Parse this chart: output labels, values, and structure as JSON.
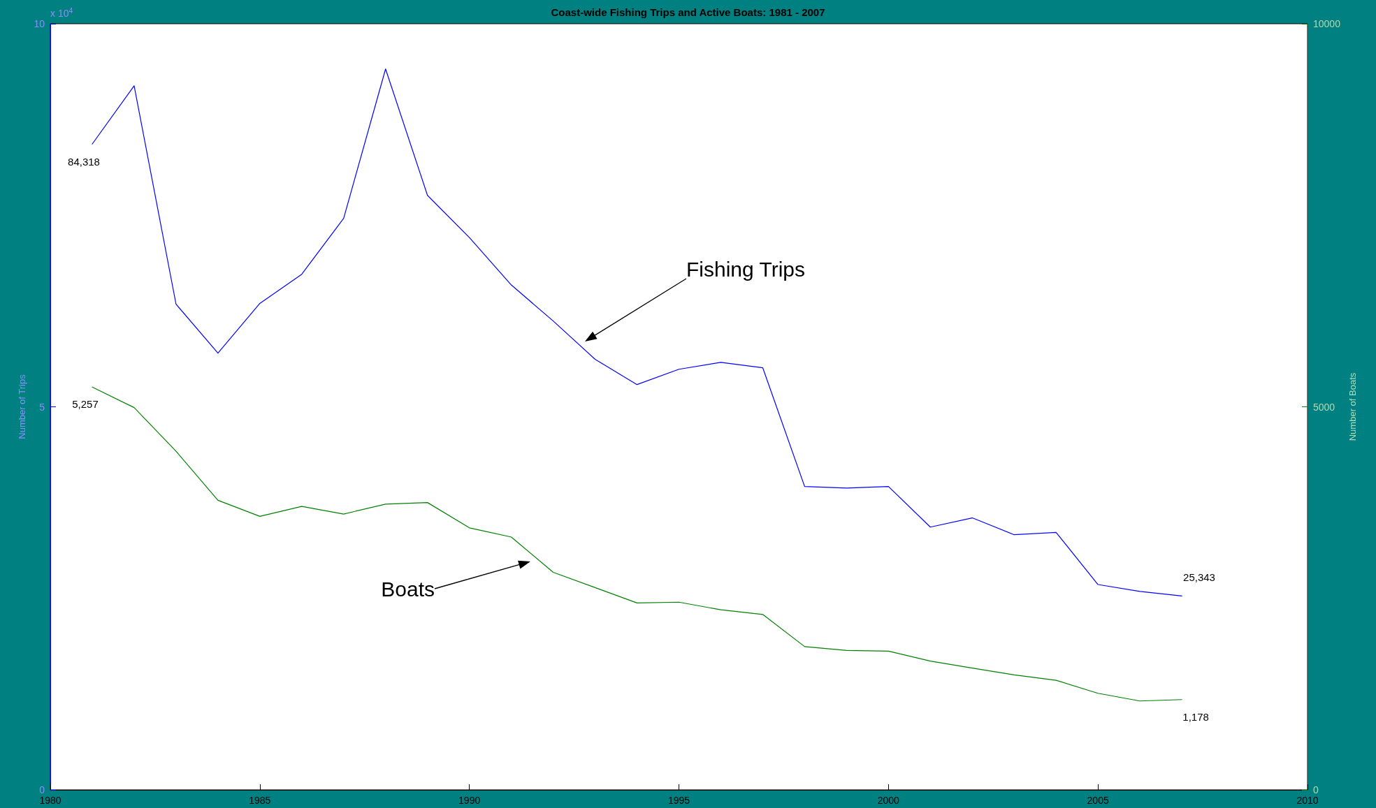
{
  "chart_data": {
    "type": "line",
    "title": "Coast-wide Fishing Trips and Active Boats: 1981 - 2007",
    "ylabel": "Number of Trips",
    "y2label": "Number of Boats",
    "x": [
      1981,
      1982,
      1983,
      1984,
      1985,
      1986,
      1987,
      1988,
      1989,
      1990,
      1991,
      1992,
      1993,
      1994,
      1995,
      1996,
      1997,
      1998,
      1999,
      2000,
      2001,
      2002,
      2003,
      2004,
      2005,
      2006,
      2007
    ],
    "series": [
      {
        "color": "#0000ff",
        "values": [
          8.43,
          9.19,
          6.34,
          5.7,
          6.35,
          6.73,
          7.46,
          9.41,
          7.76,
          7.21,
          6.59,
          6.12,
          5.62,
          5.29,
          5.49,
          5.58,
          5.51,
          3.96,
          3.94,
          3.96,
          3.43,
          3.55,
          3.33,
          3.36,
          2.68,
          2.59,
          2.53
        ]
      },
      {
        "color": "#008000",
        "axis": "y2",
        "values": [
          5257,
          4990,
          4420,
          3780,
          3570,
          3700,
          3600,
          3730,
          3750,
          3420,
          3300,
          2840,
          2640,
          2440,
          2450,
          2350,
          2290,
          1870,
          1820,
          1810,
          1680,
          1590,
          1500,
          1430,
          1260,
          1160,
          1178
        ],
        "value_labels": [
          "5,257",
          null,
          null,
          null,
          null,
          null,
          null,
          null,
          null,
          null,
          null,
          null,
          null,
          null,
          null,
          null,
          null,
          null,
          null,
          null,
          null,
          null,
          null,
          null,
          null,
          null,
          "1,178"
        ]
      }
    ],
    "xlim": [
      1980,
      2010
    ],
    "xticks": [
      1980,
      1985,
      1990,
      1995,
      2000,
      2005,
      2010
    ],
    "ylim": [
      0,
      10
    ],
    "yticks": [
      0,
      5,
      10
    ],
    "y2lim": [
      0,
      10000
    ],
    "y2ticks": [
      0,
      5000,
      10000
    ],
    "annotations": [
      "x 10$^{4}$",
      "Fishing Trips",
      "Boats",
      "84,318",
      "25,343"
    ],
    "grid": false,
    "marker": "none",
    "line_style": "solid"
  }
}
